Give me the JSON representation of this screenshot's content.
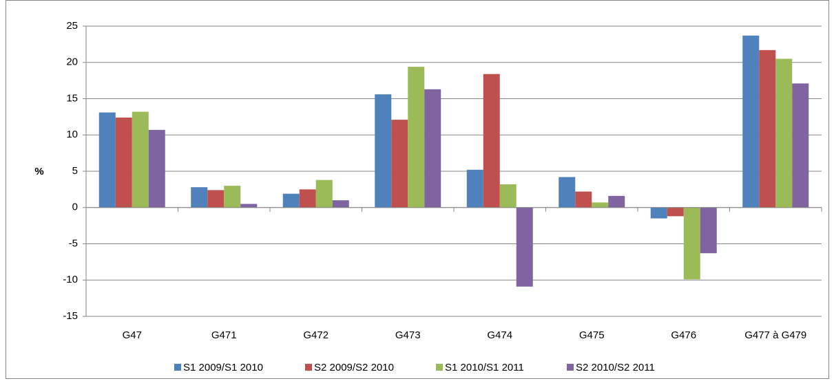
{
  "chart_data": {
    "type": "bar",
    "y_label": "%",
    "categories": [
      "G47",
      "G471",
      "G472",
      "G473",
      "G474",
      "G475",
      "G476",
      "G477 à G479"
    ],
    "series": [
      {
        "name": "S1 2009/S1 2010",
        "color": "#4f81bd",
        "values": [
          13.1,
          2.8,
          1.9,
          15.6,
          5.2,
          4.2,
          -1.5,
          23.7
        ]
      },
      {
        "name": "S2 2009/S2 2010",
        "color": "#c0504d",
        "values": [
          12.4,
          2.4,
          2.5,
          12.1,
          18.4,
          2.2,
          -1.2,
          21.7
        ]
      },
      {
        "name": "S1 2010/S1 2011",
        "color": "#9bbb59",
        "values": [
          13.2,
          3.0,
          3.8,
          19.4,
          3.2,
          0.7,
          -9.9,
          20.5
        ]
      },
      {
        "name": "S2 2010/S2 2011",
        "color": "#8064a2",
        "values": [
          10.7,
          0.5,
          1.0,
          16.3,
          -10.9,
          1.6,
          -6.3,
          17.1
        ]
      }
    ],
    "ylim": [
      -15,
      25
    ],
    "yticks": [
      -15,
      -10,
      -5,
      0,
      5,
      10,
      15,
      20,
      25
    ],
    "grid": true,
    "legend": "bottom"
  }
}
